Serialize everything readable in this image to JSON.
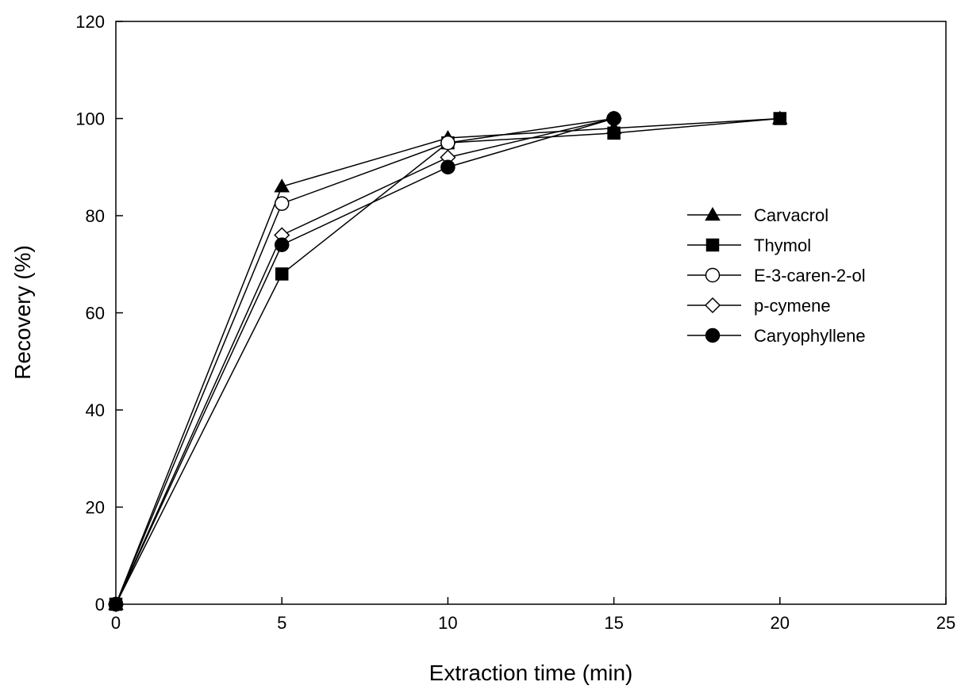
{
  "chart_data": {
    "type": "line",
    "title": "",
    "xlabel": "Extraction time (min)",
    "ylabel": "Recovery (%)",
    "xlim": [
      0,
      25
    ],
    "ylim": [
      0,
      120
    ],
    "x_ticks": [
      0,
      5,
      10,
      15,
      20,
      25
    ],
    "y_ticks": [
      0,
      20,
      40,
      60,
      80,
      100,
      120
    ],
    "grid": false,
    "legend_position": "right",
    "series": [
      {
        "name": "Carvacrol",
        "marker": "triangle-filled",
        "x": [
          0,
          5,
          10,
          15,
          20
        ],
        "y": [
          0,
          86,
          96,
          98,
          100
        ]
      },
      {
        "name": "Thymol",
        "marker": "square-filled",
        "x": [
          0,
          5,
          10,
          15,
          20
        ],
        "y": [
          0,
          68,
          95,
          97,
          100
        ]
      },
      {
        "name": "E-3-caren-2-ol",
        "marker": "circle-open",
        "x": [
          0,
          5,
          10,
          15
        ],
        "y": [
          0,
          82.5,
          95,
          100
        ]
      },
      {
        "name": "p-cymene",
        "marker": "diamond-open",
        "x": [
          0,
          5,
          10,
          15
        ],
        "y": [
          0,
          76,
          92,
          100
        ]
      },
      {
        "name": "Caryophyllene",
        "marker": "circle-filled",
        "x": [
          0,
          5,
          10,
          15
        ],
        "y": [
          0,
          74,
          90,
          100
        ]
      }
    ]
  }
}
